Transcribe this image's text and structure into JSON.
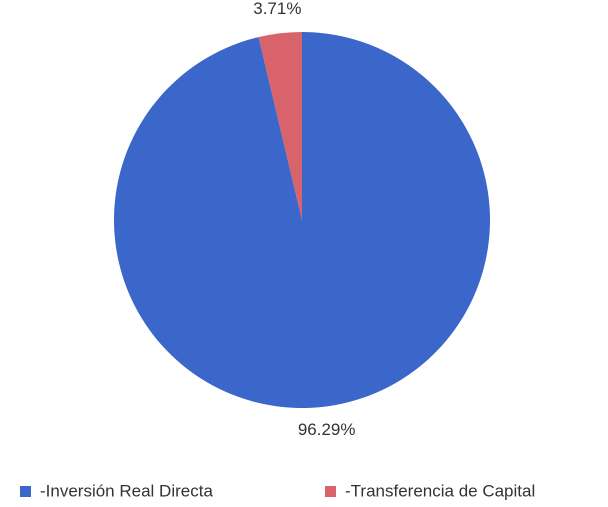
{
  "chart_data": {
    "type": "pie",
    "categories": [
      "-Inversión Real Directa",
      "-Transferencia de Capital"
    ],
    "values": [
      96.29,
      3.71
    ],
    "value_labels": [
      "96.29%",
      "3.71%"
    ],
    "colors": [
      "#3a67c9",
      "#d9636b"
    ]
  }
}
